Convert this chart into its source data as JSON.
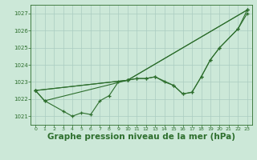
{
  "background_color": "#cce8d8",
  "grid_color": "#aaccc0",
  "line_color": "#2d6e2d",
  "xlabel": "Graphe pression niveau de la mer (hPa)",
  "xlabel_fontsize": 7.5,
  "xlim": [
    -0.5,
    23.5
  ],
  "ylim": [
    1020.5,
    1027.5
  ],
  "yticks": [
    1021,
    1022,
    1023,
    1024,
    1025,
    1026,
    1027
  ],
  "xticks": [
    0,
    1,
    2,
    3,
    4,
    5,
    6,
    7,
    8,
    9,
    10,
    11,
    12,
    13,
    14,
    15,
    16,
    17,
    18,
    19,
    20,
    21,
    22,
    23
  ],
  "series_data": {
    "s1": {
      "x": [
        0,
        1,
        3,
        4,
        5,
        6,
        7,
        8,
        9,
        10,
        11,
        12,
        13,
        14,
        15,
        16,
        17,
        18,
        19,
        20,
        22,
        23
      ],
      "y": [
        1022.5,
        1021.9,
        1021.3,
        1021.0,
        1021.2,
        1021.1,
        1021.9,
        1022.2,
        1023.0,
        1023.1,
        1023.2,
        1023.2,
        1023.3,
        1023.0,
        1022.8,
        1022.3,
        1022.4,
        1023.3,
        1024.3,
        1025.0,
        1026.1,
        1027.0
      ]
    },
    "s2": {
      "x": [
        0,
        10,
        11,
        12,
        13,
        15,
        16,
        17,
        18,
        19,
        20,
        22,
        23
      ],
      "y": [
        1022.5,
        1023.1,
        1023.2,
        1023.2,
        1023.3,
        1022.8,
        1022.3,
        1022.4,
        1023.3,
        1024.3,
        1025.0,
        1026.1,
        1027.2
      ]
    },
    "s3": {
      "x": [
        0,
        1,
        10,
        23
      ],
      "y": [
        1022.5,
        1021.9,
        1023.1,
        1027.2
      ]
    },
    "s4": {
      "x": [
        0,
        10,
        23
      ],
      "y": [
        1022.5,
        1023.1,
        1027.2
      ]
    }
  }
}
